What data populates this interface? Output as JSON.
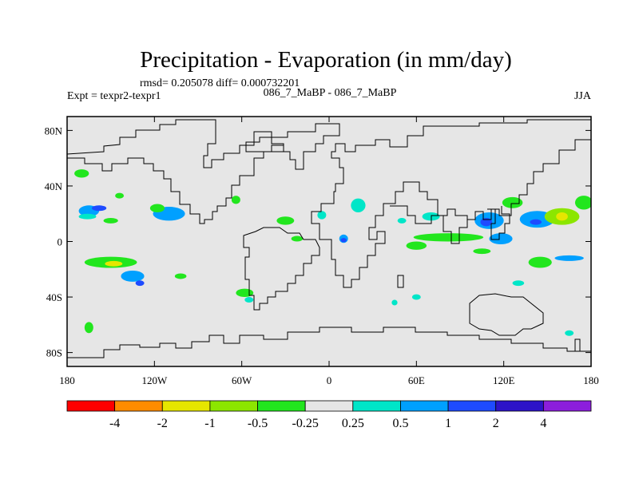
{
  "chart_data": {
    "type": "heatmap",
    "title": "Precipitation - Evaporation (in mm/day)",
    "stats_label": "rmsd= 0.205078 diff= 0.000732201",
    "subtitle": "086_7_MaBP - 086_7_MaBP",
    "experiment_label": "Expt = texpr2-texpr1",
    "season_label": "JJA",
    "x_axis": {
      "ticks": [
        {
          "value": -180,
          "label": "180"
        },
        {
          "value": -120,
          "label": "120W"
        },
        {
          "value": -60,
          "label": "60W"
        },
        {
          "value": 0,
          "label": "0"
        },
        {
          "value": 60,
          "label": "60E"
        },
        {
          "value": 120,
          "label": "120E"
        },
        {
          "value": 180,
          "label": "180"
        }
      ],
      "range": [
        -180,
        180
      ]
    },
    "y_axis": {
      "ticks": [
        {
          "value": 80,
          "label": "80N"
        },
        {
          "value": 40,
          "label": "40N"
        },
        {
          "value": 0,
          "label": "0"
        },
        {
          "value": -40,
          "label": "40S"
        },
        {
          "value": -80,
          "label": "80S"
        }
      ],
      "range": [
        -90,
        90
      ]
    },
    "colorbar": {
      "colors": [
        "#ff0000",
        "#ff8c00",
        "#e6e600",
        "#8ce600",
        "#22e61e",
        "#e6e6e6",
        "#00e6c8",
        "#00a0ff",
        "#1e4bff",
        "#2d14c8",
        "#8c1edc"
      ],
      "labels": [
        "-4",
        "-2",
        "-1",
        "-0.5",
        "-0.25",
        "0.25",
        "0.5",
        "1",
        "2",
        "4"
      ]
    },
    "background_color": "#e6e6e6",
    "regions": [
      {
        "lon": -170,
        "lat": 49,
        "value": -0.4,
        "w": 5,
        "h": 3
      },
      {
        "lon": -165,
        "lat": 22,
        "value": 0.8,
        "w": 7,
        "h": 4
      },
      {
        "lon": -158,
        "lat": 24,
        "value": 1.2,
        "w": 5,
        "h": 2
      },
      {
        "lon": -166,
        "lat": 18,
        "value": 0.4,
        "w": 6,
        "h": 2
      },
      {
        "lon": -150,
        "lat": 15,
        "value": -0.3,
        "w": 5,
        "h": 2
      },
      {
        "lon": -144,
        "lat": 33,
        "value": -0.3,
        "w": 3,
        "h": 2
      },
      {
        "lon": -110,
        "lat": 20,
        "value": 0.6,
        "w": 11,
        "h": 5
      },
      {
        "lon": -110,
        "lat": 18,
        "value": 0.8,
        "w": 5,
        "h": 2
      },
      {
        "lon": -118,
        "lat": 24,
        "value": -0.4,
        "w": 5,
        "h": 3
      },
      {
        "lon": -64,
        "lat": 30,
        "value": -0.3,
        "w": 3,
        "h": 3
      },
      {
        "lon": -30,
        "lat": 15,
        "value": -0.3,
        "w": 6,
        "h": 3
      },
      {
        "lon": -22,
        "lat": 2,
        "value": -0.3,
        "w": 4,
        "h": 2
      },
      {
        "lon": -5,
        "lat": 19,
        "value": 0.4,
        "w": 3,
        "h": 3
      },
      {
        "lon": 20,
        "lat": 26,
        "value": 0.4,
        "w": 5,
        "h": 5
      },
      {
        "lon": 10,
        "lat": 2,
        "value": 0.8,
        "w": 3,
        "h": 3
      },
      {
        "lon": 10,
        "lat": 1,
        "value": 1.6,
        "w": 2,
        "h": 1.5
      },
      {
        "lon": 50,
        "lat": 15,
        "value": 0.4,
        "w": 3,
        "h": 2
      },
      {
        "lon": 70,
        "lat": 18,
        "value": 0.4,
        "w": 6,
        "h": 3
      },
      {
        "lon": 82,
        "lat": 3,
        "value": -0.4,
        "w": 24,
        "h": 3
      },
      {
        "lon": 60,
        "lat": -3,
        "value": -0.3,
        "w": 7,
        "h": 3
      },
      {
        "lon": 110,
        "lat": 15,
        "value": 0.7,
        "w": 10,
        "h": 6
      },
      {
        "lon": 108,
        "lat": 14,
        "value": 1.2,
        "w": 4,
        "h": 3
      },
      {
        "lon": 126,
        "lat": 28,
        "value": -0.4,
        "w": 7,
        "h": 4
      },
      {
        "lon": 143,
        "lat": 16,
        "value": 0.8,
        "w": 12,
        "h": 6
      },
      {
        "lon": 142,
        "lat": 14,
        "value": 1.3,
        "w": 4,
        "h": 2
      },
      {
        "lon": 160,
        "lat": 18,
        "value": -0.6,
        "w": 12,
        "h": 6
      },
      {
        "lon": 160,
        "lat": 18,
        "value": -1.5,
        "w": 4,
        "h": 3
      },
      {
        "lon": 175,
        "lat": 28,
        "value": -0.4,
        "w": 6,
        "h": 5
      },
      {
        "lon": 118,
        "lat": 2,
        "value": 0.6,
        "w": 8,
        "h": 4
      },
      {
        "lon": 105,
        "lat": -7,
        "value": -0.5,
        "w": 6,
        "h": 2
      },
      {
        "lon": 145,
        "lat": -15,
        "value": -0.4,
        "w": 8,
        "h": 4
      },
      {
        "lon": 165,
        "lat": -12,
        "value": 0.5,
        "w": 10,
        "h": 2
      },
      {
        "lon": -150,
        "lat": -15,
        "value": -0.5,
        "w": 18,
        "h": 4
      },
      {
        "lon": -148,
        "lat": -16,
        "value": -1.2,
        "w": 6,
        "h": 2
      },
      {
        "lon": -135,
        "lat": -25,
        "value": 0.6,
        "w": 8,
        "h": 4
      },
      {
        "lon": -130,
        "lat": -30,
        "value": 1.2,
        "w": 3,
        "h": 2
      },
      {
        "lon": -102,
        "lat": -25,
        "value": -0.3,
        "w": 4,
        "h": 2
      },
      {
        "lon": -58,
        "lat": -37,
        "value": -0.4,
        "w": 6,
        "h": 3
      },
      {
        "lon": -55,
        "lat": -42,
        "value": 0.4,
        "w": 3,
        "h": 2
      },
      {
        "lon": -165,
        "lat": -62,
        "value": -0.3,
        "w": 3,
        "h": 4
      },
      {
        "lon": 60,
        "lat": -40,
        "value": 0.4,
        "w": 3,
        "h": 2
      },
      {
        "lon": 130,
        "lat": -30,
        "value": 0.4,
        "w": 4,
        "h": 2
      },
      {
        "lon": 165,
        "lat": -66,
        "value": 0.4,
        "w": 3,
        "h": 2
      },
      {
        "lon": 45,
        "lat": -44,
        "value": 0.3,
        "w": 2,
        "h": 2
      }
    ]
  }
}
